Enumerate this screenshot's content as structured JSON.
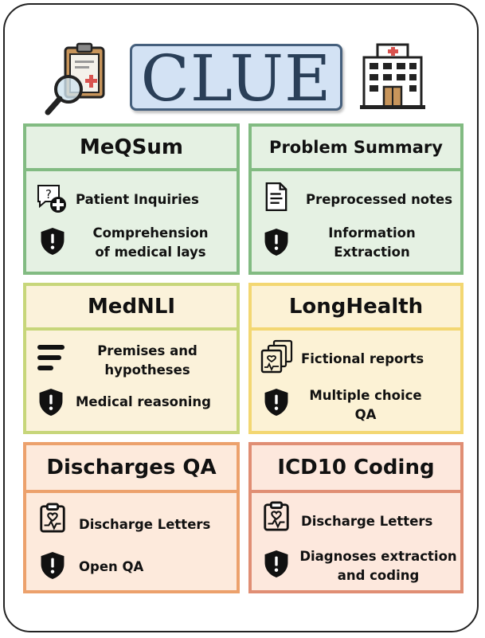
{
  "logo": {
    "text": "CLUE"
  },
  "icons": {
    "left": "clipboard-magnifier-icon",
    "right": "hospital-icon"
  },
  "cards": [
    {
      "title": "MeQSum",
      "color": "#82bb82",
      "rows": [
        {
          "icon": "chat-question-icon",
          "label": "Patient Inquiries"
        },
        {
          "icon": "shield-icon",
          "label_lines": [
            "Comprehension",
            "of medical lays"
          ]
        }
      ]
    },
    {
      "title": "Problem Summary",
      "color": "#82bb82",
      "rows": [
        {
          "icon": "document-icon",
          "label": "Preprocessed notes"
        },
        {
          "icon": "shield-icon",
          "label_lines": [
            "Information",
            "Extraction"
          ]
        }
      ]
    },
    {
      "title": "MedNLI",
      "color": "#c7d67a",
      "rows": [
        {
          "icon": "text-lines-icon",
          "label_lines": [
            "Premises and",
            "hypotheses"
          ]
        },
        {
          "icon": "shield-icon",
          "label": "Medical reasoning"
        }
      ]
    },
    {
      "title": "LongHealth",
      "color": "#f3d772",
      "rows": [
        {
          "icon": "stacked-reports-icon",
          "label": "Fictional reports"
        },
        {
          "icon": "shield-icon",
          "label_lines": [
            "Multiple choice",
            "QA"
          ]
        }
      ]
    },
    {
      "title": "Discharges QA",
      "color": "#eca16c",
      "rows": [
        {
          "icon": "medical-clipboard-icon",
          "label": "Discharge Letters"
        },
        {
          "icon": "shield-icon",
          "label": "Open QA"
        }
      ]
    },
    {
      "title": "ICD10 Coding",
      "color": "#e08e74",
      "rows": [
        {
          "icon": "medical-clipboard-icon",
          "label": "Discharge Letters"
        },
        {
          "icon": "shield-icon",
          "label_lines": [
            "Diagnoses extraction",
            "and coding"
          ]
        }
      ]
    }
  ]
}
